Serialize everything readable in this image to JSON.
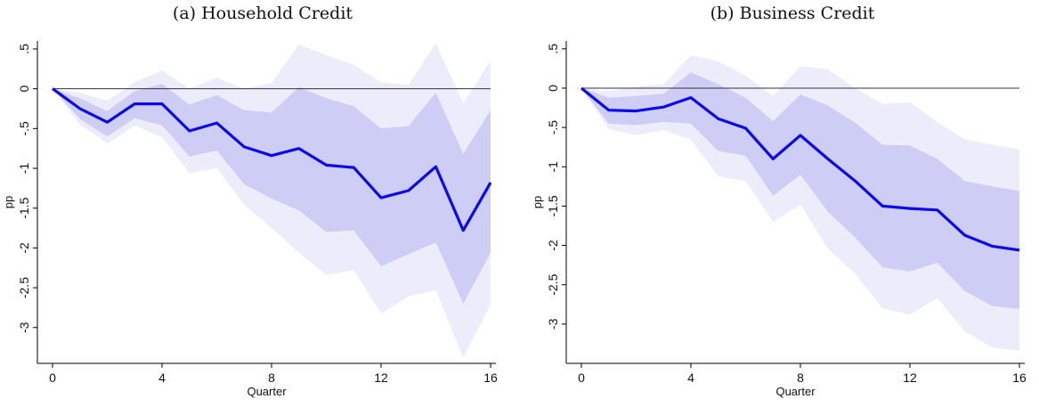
{
  "panels": {
    "a": {
      "title": "(a) Household Credit"
    },
    "b": {
      "title": "(b) Business Credit"
    }
  },
  "colors": {
    "line": "#0a0aeb",
    "band_inner": "#cdcdf6",
    "band_outer": "#ececfb",
    "zero_line": "#333333",
    "axis": "#000000"
  },
  "chart_data": [
    {
      "type": "line",
      "title": "(a) Household Credit",
      "xlabel": "Quarter",
      "ylabel": "pp",
      "xlim": [
        0,
        16
      ],
      "ylim": [
        -3.45,
        0.6
      ],
      "xticks": [
        0,
        4,
        8,
        12,
        16
      ],
      "xtick_labels": [
        "0",
        "4",
        "8",
        "12",
        "16"
      ],
      "yticks": [
        0.5,
        0,
        -0.5,
        -1,
        -1.5,
        -2,
        -2.5,
        -3
      ],
      "ytick_labels": [
        ".5",
        "0",
        "-.5",
        "-1",
        "-1.5",
        "-2",
        "-2.5",
        "-3"
      ],
      "x": [
        0,
        1,
        2,
        3,
        4,
        5,
        6,
        7,
        8,
        9,
        10,
        11,
        12,
        13,
        14,
        15,
        16
      ],
      "series": [
        {
          "values": [
            0,
            -0.25,
            -0.42,
            -0.19,
            -0.19,
            -0.53,
            -0.43,
            -0.73,
            -0.84,
            -0.75,
            -0.96,
            -0.99,
            -1.37,
            -1.28,
            -0.98,
            -1.78,
            -1.18
          ]
        }
      ],
      "band_inner": {
        "upper": [
          0,
          -0.12,
          -0.28,
          -0.03,
          0.06,
          -0.2,
          -0.08,
          -0.27,
          -0.3,
          0.02,
          -0.12,
          -0.22,
          -0.5,
          -0.47,
          -0.05,
          -0.82,
          -0.27
        ],
        "lower": [
          0,
          -0.38,
          -0.6,
          -0.37,
          -0.46,
          -0.85,
          -0.78,
          -1.2,
          -1.38,
          -1.53,
          -1.8,
          -1.78,
          -2.23,
          -2.08,
          -1.93,
          -2.7,
          -2.06
        ]
      },
      "band_outer": {
        "upper": [
          0,
          -0.05,
          -0.15,
          0.08,
          0.23,
          0.0,
          0.14,
          0.0,
          0.07,
          0.56,
          0.42,
          0.3,
          0.08,
          0.05,
          0.57,
          -0.18,
          0.35
        ]
      }
    },
    {
      "type": "line",
      "title": "(b) Business Credit",
      "xlabel": "Quarter",
      "ylabel": "pp",
      "xlim": [
        0,
        16
      ],
      "ylim": [
        -3.5,
        0.6
      ],
      "xticks": [
        0,
        4,
        8,
        12,
        16
      ],
      "xtick_labels": [
        "0",
        "4",
        "8",
        "12",
        "16"
      ],
      "yticks": [
        0.5,
        0,
        -0.5,
        -1,
        -1.5,
        -2,
        -2.5,
        -3
      ],
      "ytick_labels": [
        ".5",
        "0",
        "-.5",
        "-1",
        "-1.5",
        "-2",
        "-2.5",
        "-3"
      ],
      "x": [
        0,
        1,
        2,
        3,
        4,
        5,
        6,
        7,
        8,
        9,
        10,
        11,
        12,
        13,
        14,
        15,
        16
      ],
      "series": [
        {
          "values": [
            0,
            -0.28,
            -0.29,
            -0.24,
            -0.12,
            -0.39,
            -0.51,
            -0.9,
            -0.6,
            -0.9,
            -1.18,
            -1.5,
            -1.53,
            -1.55,
            -1.87,
            -2.01,
            -2.06
          ]
        }
      ],
      "band_inner": {
        "upper": [
          0,
          -0.12,
          -0.1,
          -0.07,
          0.2,
          0.05,
          -0.12,
          -0.42,
          -0.08,
          -0.22,
          -0.44,
          -0.72,
          -0.73,
          -0.9,
          -1.18,
          -1.25,
          -1.31
        ],
        "lower": [
          0,
          -0.45,
          -0.47,
          -0.43,
          -0.45,
          -0.8,
          -0.86,
          -1.37,
          -1.1,
          -1.57,
          -1.9,
          -2.28,
          -2.33,
          -2.22,
          -2.58,
          -2.77,
          -2.81
        ]
      },
      "band_outer": {
        "upper": [
          0,
          -0.04,
          0.02,
          0.05,
          0.42,
          0.34,
          0.16,
          -0.1,
          0.28,
          0.24,
          0.0,
          -0.2,
          -0.18,
          -0.43,
          -0.65,
          -0.72,
          -0.78
        ]
      }
    }
  ]
}
